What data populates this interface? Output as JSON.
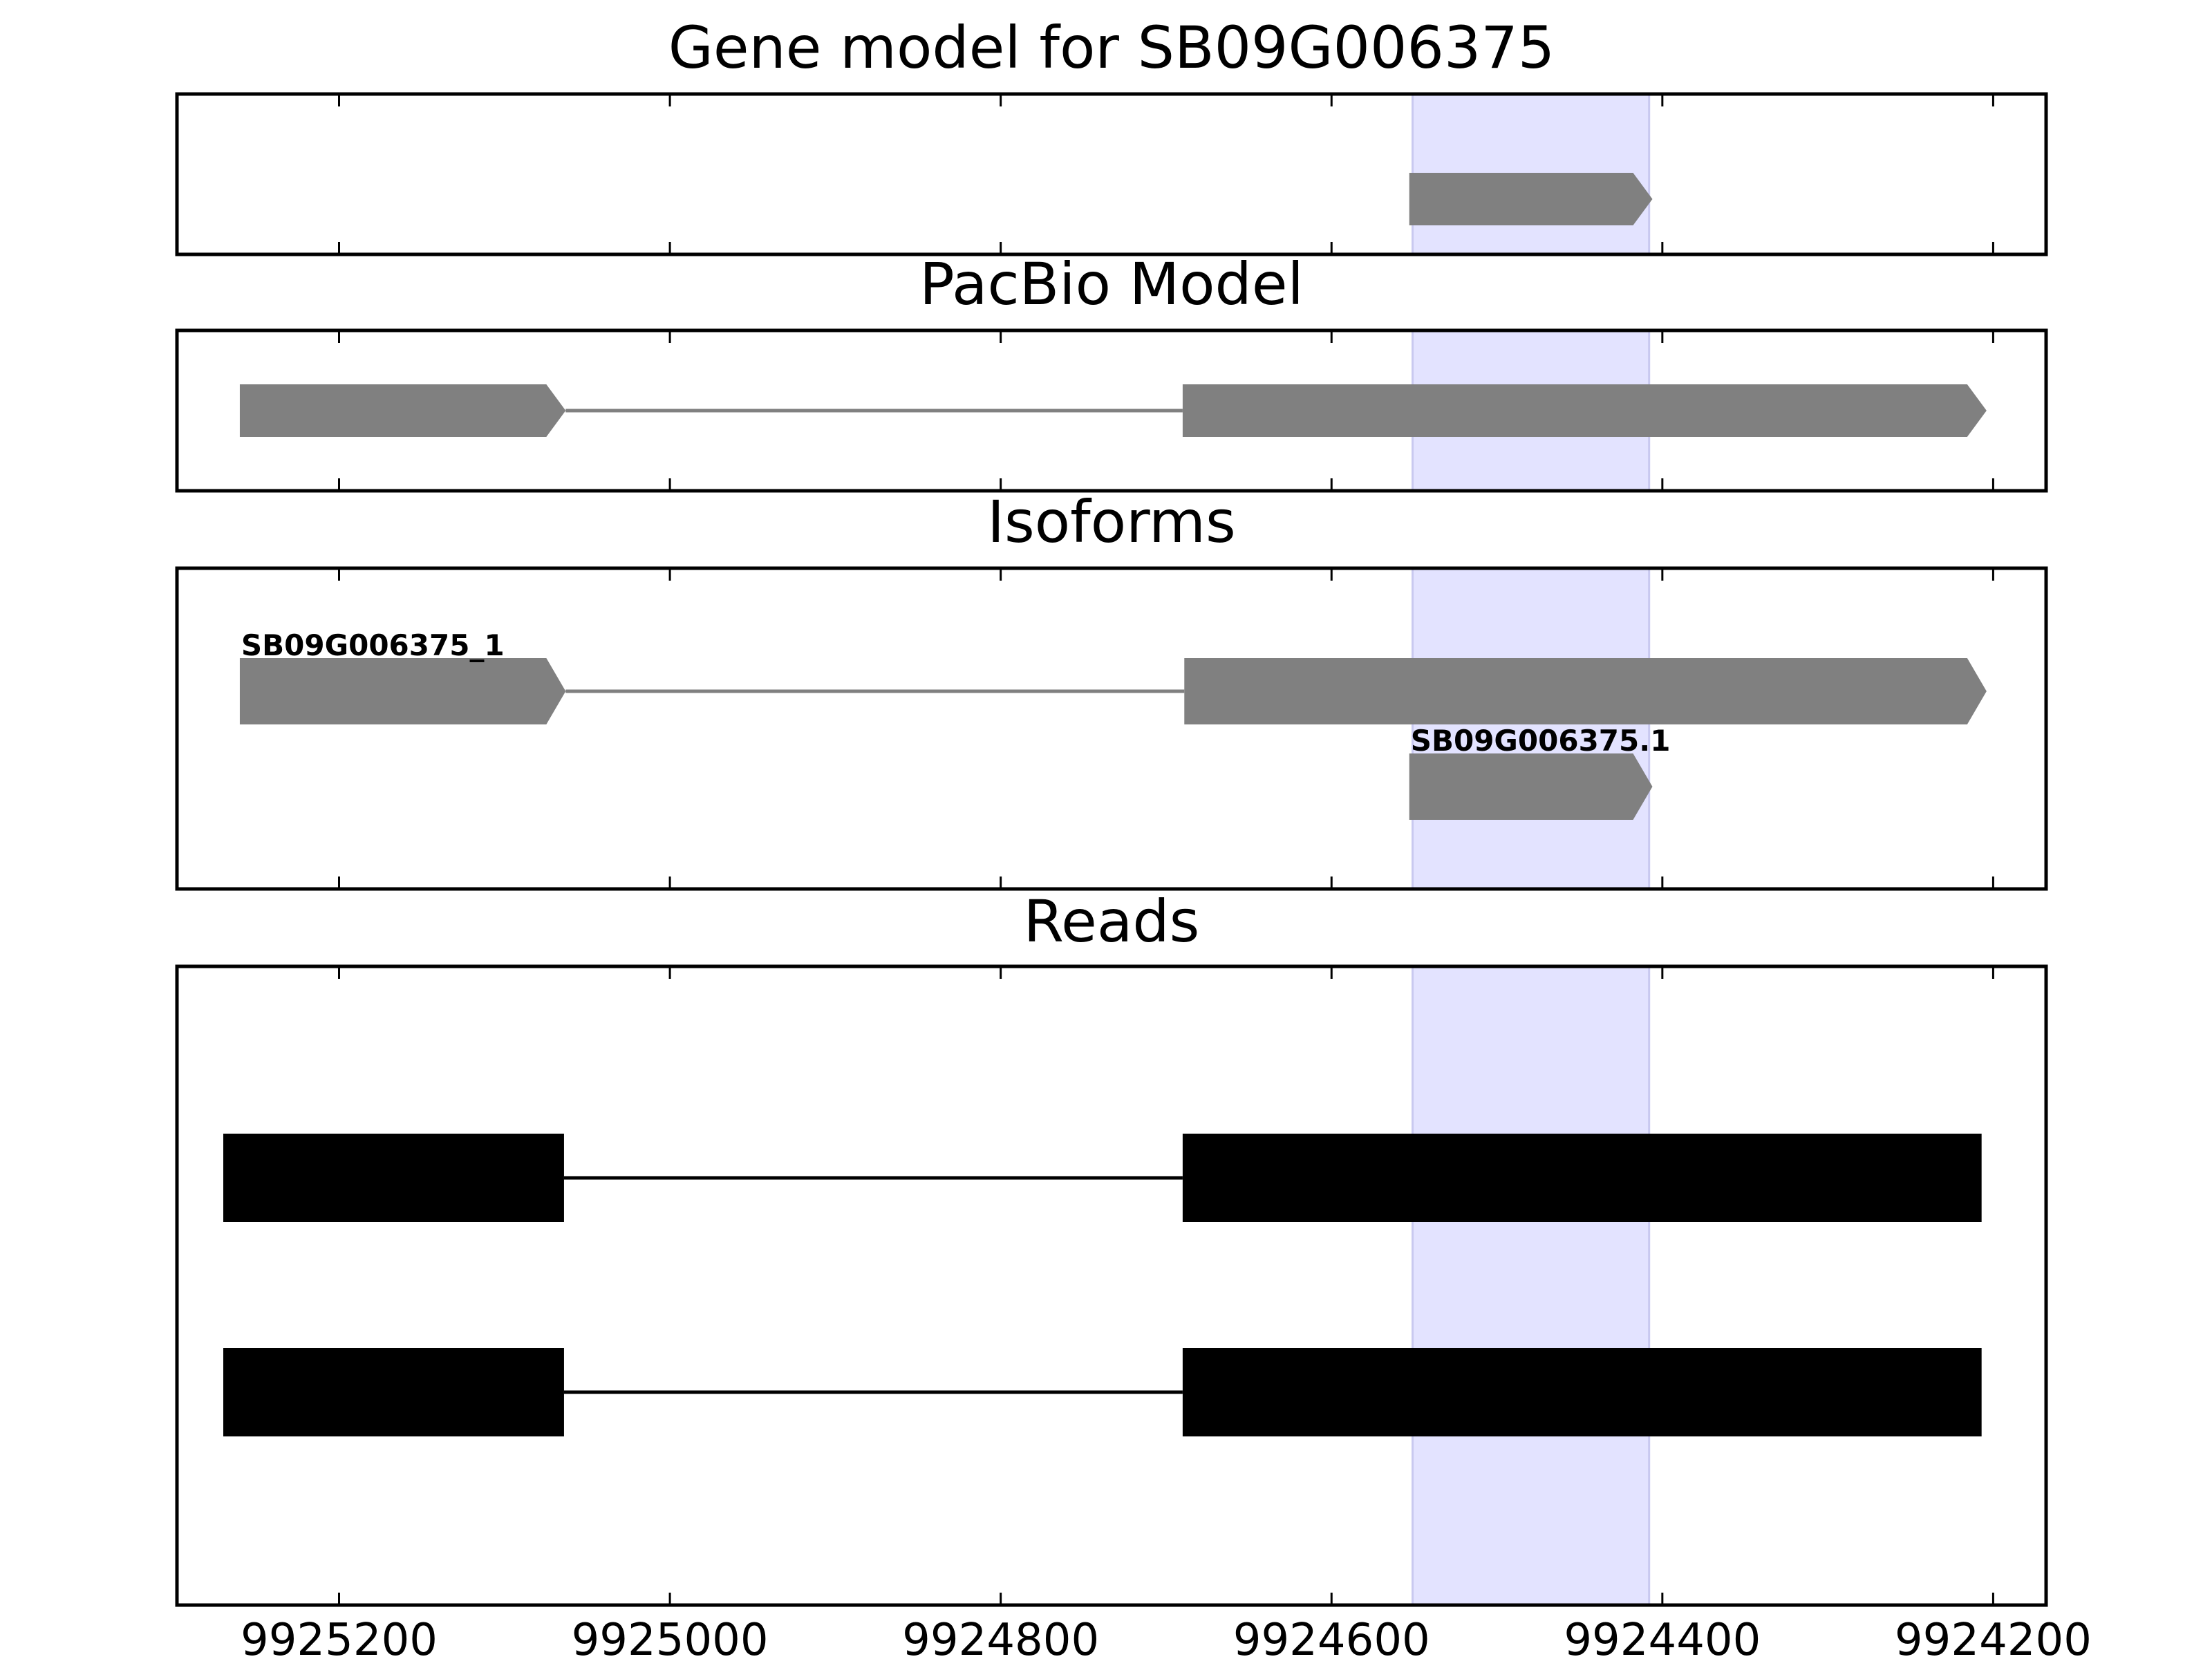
{
  "chart_data": {
    "type": "gene-track",
    "x_axis": {
      "ticks": [
        9925200,
        9925000,
        9924800,
        9924600,
        9924400,
        9924200
      ],
      "tick_labels": [
        "9925200",
        "9925000",
        "9924800",
        "9924600",
        "9924400",
        "9924200"
      ],
      "reversed": true,
      "xlim": [
        9925298,
        9924168
      ]
    },
    "highlight": {
      "start": 9924551,
      "end": 9924408,
      "color": "#e3e3ff"
    },
    "panels": [
      {
        "id": "gene-model",
        "title": "Gene model for SB09G006375",
        "features": [
          {
            "label": "",
            "y": 0,
            "color": "#808080",
            "style": "arrow",
            "exons": [
              [
                9924553,
                9924406
              ]
            ]
          }
        ]
      },
      {
        "id": "pacbio-model",
        "title": "PacBio Model",
        "features": [
          {
            "label": "",
            "y": 0,
            "color": "#808080",
            "style": "arrow",
            "exons": [
              [
                9925260,
                9925063
              ],
              [
                9924690,
                9924204
              ]
            ]
          }
        ]
      },
      {
        "id": "isoforms",
        "title": "Isoforms",
        "features": [
          {
            "label": "SB09G006375_1",
            "y": 0,
            "color": "#808080",
            "style": "arrow",
            "exons": [
              [
                9925260,
                9925063
              ],
              [
                9924689,
                9924204
              ]
            ]
          },
          {
            "label": "SB09G006375.1",
            "y": 1,
            "color": "#808080",
            "style": "arrow",
            "exons": [
              [
                9924553,
                9924406
              ]
            ]
          }
        ]
      },
      {
        "id": "reads",
        "title": "Reads",
        "features": [
          {
            "label": "",
            "y": 0,
            "color": "#000000",
            "style": "block",
            "exons": [
              [
                9925270,
                9925064
              ],
              [
                9924690,
                9924207
              ]
            ]
          },
          {
            "label": "",
            "y": 1,
            "color": "#000000",
            "style": "block",
            "exons": [
              [
                9925270,
                9925064
              ],
              [
                9924690,
                9924207
              ]
            ]
          }
        ]
      }
    ]
  }
}
